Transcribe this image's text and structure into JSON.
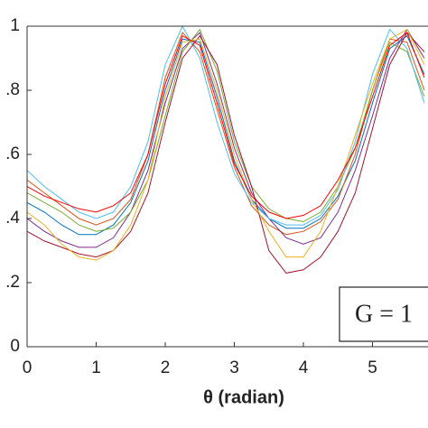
{
  "chart_data": {
    "type": "line",
    "xlabel": "θ (radian)",
    "annotation": "G = 1",
    "x": [
      0,
      0.25,
      0.5,
      0.75,
      1,
      1.25,
      1.5,
      1.75,
      2,
      2.25,
      2.5,
      2.75,
      3,
      3.25,
      3.5,
      3.75,
      4,
      4.25,
      4.5,
      4.75,
      5,
      5.25,
      5.5,
      5.75
    ],
    "series": [
      {
        "color": "#0072bd",
        "values": [
          0.45,
          0.42,
          0.38,
          0.35,
          0.35,
          0.38,
          0.45,
          0.58,
          0.8,
          0.96,
          0.95,
          0.78,
          0.58,
          0.46,
          0.4,
          0.37,
          0.37,
          0.4,
          0.47,
          0.58,
          0.76,
          0.93,
          0.97,
          0.85
        ]
      },
      {
        "color": "#d95319",
        "values": [
          0.52,
          0.48,
          0.44,
          0.4,
          0.38,
          0.4,
          0.46,
          0.6,
          0.84,
          0.98,
          0.92,
          0.74,
          0.56,
          0.44,
          0.38,
          0.35,
          0.36,
          0.39,
          0.46,
          0.6,
          0.8,
          0.96,
          0.95,
          0.8
        ]
      },
      {
        "color": "#7e2f8e",
        "values": [
          0.4,
          0.36,
          0.33,
          0.31,
          0.31,
          0.34,
          0.42,
          0.55,
          0.76,
          0.93,
          0.98,
          0.82,
          0.62,
          0.48,
          0.4,
          0.34,
          0.32,
          0.34,
          0.42,
          0.55,
          0.72,
          0.9,
          0.99,
          0.9
        ]
      },
      {
        "color": "#77ac30",
        "values": [
          0.48,
          0.45,
          0.42,
          0.38,
          0.36,
          0.37,
          0.42,
          0.52,
          0.72,
          0.92,
          0.99,
          0.86,
          0.64,
          0.5,
          0.43,
          0.4,
          0.39,
          0.42,
          0.5,
          0.62,
          0.8,
          0.95,
          0.92,
          0.78
        ]
      },
      {
        "color": "#4dbeee",
        "values": [
          0.55,
          0.5,
          0.46,
          0.42,
          0.4,
          0.42,
          0.5,
          0.64,
          0.88,
          1.0,
          0.9,
          0.7,
          0.54,
          0.45,
          0.4,
          0.38,
          0.38,
          0.41,
          0.49,
          0.64,
          0.85,
          0.99,
          0.93,
          0.76
        ]
      },
      {
        "color": "#a2142f",
        "values": [
          0.36,
          0.33,
          0.31,
          0.29,
          0.28,
          0.3,
          0.36,
          0.48,
          0.7,
          0.9,
          0.97,
          0.88,
          0.66,
          0.5,
          0.3,
          0.23,
          0.24,
          0.28,
          0.36,
          0.48,
          0.68,
          0.88,
          0.98,
          0.92
        ]
      },
      {
        "color": "#edb120",
        "values": [
          0.42,
          0.38,
          0.32,
          0.28,
          0.27,
          0.3,
          0.38,
          0.52,
          0.78,
          0.95,
          0.96,
          0.8,
          0.6,
          0.46,
          0.36,
          0.28,
          0.28,
          0.36,
          0.5,
          0.66,
          0.82,
          0.96,
          0.99,
          0.88
        ]
      },
      {
        "color": "#ff0000",
        "values": [
          0.5,
          0.47,
          0.45,
          0.43,
          0.42,
          0.44,
          0.48,
          0.6,
          0.82,
          0.97,
          0.94,
          0.76,
          0.57,
          0.47,
          0.42,
          0.4,
          0.41,
          0.44,
          0.52,
          0.62,
          0.78,
          0.94,
          0.98,
          0.84
        ]
      }
    ],
    "xlim": [
      0,
      5.8
    ],
    "ylim": [
      0,
      1
    ],
    "xticks": [
      0,
      1,
      2,
      3,
      4,
      5
    ],
    "yticks": [
      0,
      {
        "value": 0.2,
        "label": ".2"
      },
      {
        "value": 0.4,
        "label": ".4"
      },
      {
        "value": 0.6,
        "label": ".6"
      },
      {
        "value": 0.8,
        "label": ".8"
      },
      1
    ]
  }
}
